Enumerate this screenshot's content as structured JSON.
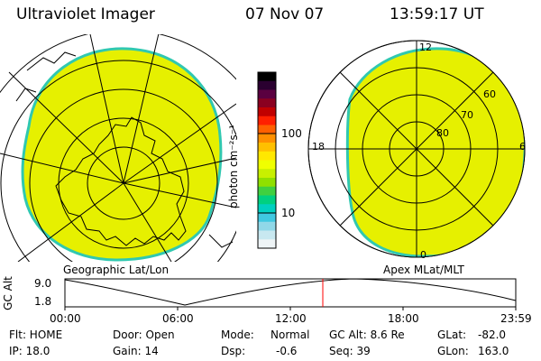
{
  "header": {
    "instrument": "Ultraviolet Imager",
    "date": "07 Nov 07",
    "time": "13:59:17 UT"
  },
  "left_panel": {
    "label": "Geographic Lat/Lon"
  },
  "right_panel": {
    "label": "Apex MLat/MLT",
    "lat_labels": [
      "60",
      "70",
      "80"
    ],
    "mlt_labels": {
      "top": "12",
      "left": "18",
      "right": "6",
      "bottom": "0"
    }
  },
  "colorbar": {
    "unit_label": "photon cm⁻²s⁻¹",
    "ticks": [
      "100",
      "10"
    ],
    "colors": [
      "#000000",
      "#2a0030",
      "#5a0040",
      "#8a0020",
      "#c00000",
      "#ff2000",
      "#ff6000",
      "#ff9000",
      "#ffc000",
      "#ffe800",
      "#f0ff00",
      "#c8f000",
      "#90e000",
      "#40d040",
      "#00d080",
      "#00d0c0",
      "#40c8e0",
      "#90d8e8",
      "#c8e8f0",
      "#eef4f6"
    ]
  },
  "altitude_plot": {
    "ylabel": "GC Alt",
    "y_ticks": [
      "9.0",
      "1.8"
    ],
    "x_ticks": [
      "00:00",
      "06:00",
      "12:00",
      "18:00",
      "23:59"
    ]
  },
  "status": {
    "row1": {
      "flt": "Flt: HOME",
      "door": "Door: Open",
      "mode_label": "Mode:",
      "mode_value": "Normal",
      "gc_alt": "GC Alt: 8.6 Re",
      "glat_label": "GLat:",
      "glat_value": "-82.0"
    },
    "row2": {
      "ip": "IP: 18.0",
      "gain": "Gain: 14",
      "dsp_label": "Dsp:",
      "dsp_value": "-0.6",
      "seq": "Seq: 39",
      "glon_label": "GLon:",
      "glon_value": "163.0"
    }
  },
  "colors": {
    "aurora": "#e6f000",
    "rim": "#30c8b0",
    "marker": "#ff0000"
  }
}
